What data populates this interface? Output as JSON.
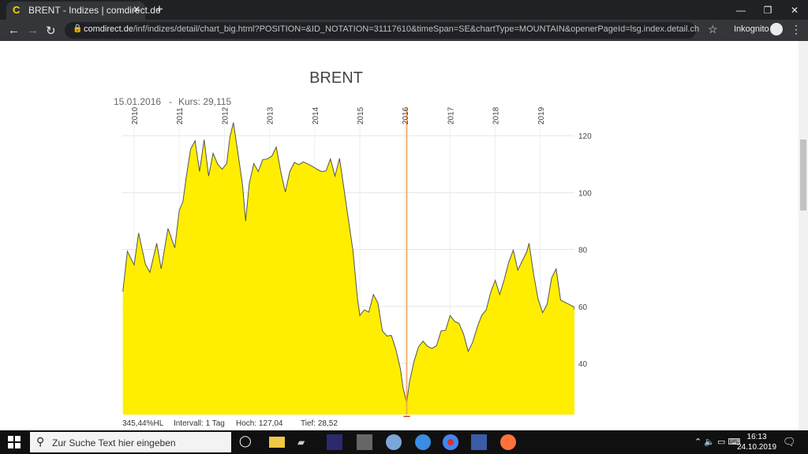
{
  "browser": {
    "tab_title": "BRENT - Indizes | comdirect.de",
    "url_host": "comdirect.de",
    "url_path": "/inf/indizes/detail/chart_big.html?POSITION=&ID_NOTATION=31117610&timeSpan=SE&chartType=MOUNTAIN&openerPageId=lsg.index.detail.chart&B...",
    "incognito_label": "Inkognito"
  },
  "taskbar": {
    "search_placeholder": "Zur Suche Text hier eingeben",
    "time": "16:13",
    "date": "24.10.2019"
  },
  "chart_info": {
    "cursor_date": "15.01.2016",
    "cursor_price_label": "Kurs: 29,115",
    "stats_change": "345,44%HL",
    "stats_interval": "Intervall: 1 Tag",
    "stats_high": "Hoch:  127,04",
    "stats_low": "Tief:  28,52"
  },
  "chart_data": {
    "type": "area",
    "title": "BRENT",
    "x_tick_labels": [
      "2010",
      "2011",
      "2012",
      "2013",
      "2014",
      "2015",
      "2016",
      "2017",
      "2018",
      "2019"
    ],
    "y_tick_labels": [
      "40",
      "60",
      "80",
      "100",
      "120"
    ],
    "ylim": [
      22,
      130
    ],
    "fill_color": "#ffee00",
    "line_color": "#555555",
    "cursor_color": "#f0a050",
    "x": [
      2009.75,
      2009.85,
      2010.0,
      2010.1,
      2010.25,
      2010.35,
      2010.5,
      2010.6,
      2010.75,
      2010.9,
      2011.0,
      2011.08,
      2011.15,
      2011.25,
      2011.35,
      2011.45,
      2011.55,
      2011.65,
      2011.75,
      2011.85,
      2011.95,
      2012.05,
      2012.12,
      2012.2,
      2012.3,
      2012.4,
      2012.47,
      2012.55,
      2012.65,
      2012.75,
      2012.85,
      2012.95,
      2013.05,
      2013.15,
      2013.25,
      2013.35,
      2013.45,
      2013.55,
      2013.65,
      2013.75,
      2013.85,
      2013.95,
      2014.05,
      2014.15,
      2014.25,
      2014.35,
      2014.45,
      2014.55,
      2014.65,
      2014.75,
      2014.85,
      2014.95,
      2015.0,
      2015.1,
      2015.2,
      2015.3,
      2015.4,
      2015.5,
      2015.6,
      2015.7,
      2015.8,
      2015.9,
      2015.96,
      2016.04,
      2016.1,
      2016.2,
      2016.3,
      2016.4,
      2016.5,
      2016.6,
      2016.7,
      2016.8,
      2016.9,
      2017.0,
      2017.1,
      2017.2,
      2017.3,
      2017.4,
      2017.5,
      2017.6,
      2017.7,
      2017.8,
      2017.9,
      2018.0,
      2018.1,
      2018.2,
      2018.3,
      2018.4,
      2018.5,
      2018.6,
      2018.7,
      2018.75,
      2018.85,
      2018.95,
      2019.05,
      2019.15,
      2019.25,
      2019.35,
      2019.45,
      2019.55,
      2019.65,
      2019.75,
      2019.8
    ],
    "y": [
      67,
      80,
      74,
      84,
      76,
      72,
      81,
      75,
      88,
      80,
      92,
      98,
      105,
      114,
      120,
      108,
      118,
      104,
      115,
      110,
      107,
      112,
      120,
      124,
      112,
      104,
      90,
      102,
      112,
      108,
      111,
      110,
      114,
      116,
      106,
      102,
      108,
      110,
      108,
      112,
      110,
      108,
      110,
      108,
      107,
      110,
      107,
      112,
      100,
      92,
      80,
      62,
      55,
      60,
      58,
      63,
      63,
      52,
      49,
      48,
      46,
      38,
      30,
      28,
      34,
      40,
      44,
      49,
      46,
      44,
      48,
      52,
      51,
      55,
      56,
      54,
      49,
      46,
      48,
      52,
      55,
      60,
      65,
      68,
      66,
      70,
      75,
      78,
      74,
      76,
      78,
      84,
      72,
      62,
      56,
      62,
      70,
      72,
      64,
      62,
      60,
      58,
      60
    ]
  }
}
